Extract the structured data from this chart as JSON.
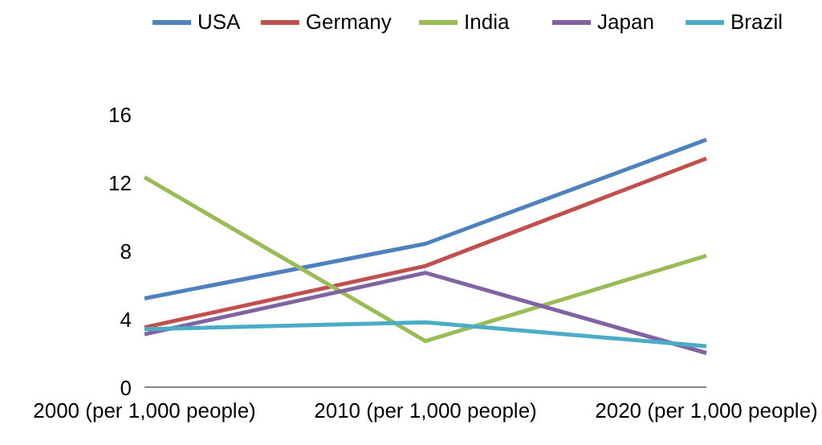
{
  "chart_data": {
    "type": "line",
    "categories": [
      "2000 (per 1,000 people)",
      "2010 (per 1,000 people)",
      "2020 (per 1,000 people)"
    ],
    "series": [
      {
        "name": "USA",
        "color": "#4f81bd",
        "values": [
          5.2,
          8.4,
          14.5
        ]
      },
      {
        "name": "Germany",
        "color": "#c0504d",
        "values": [
          3.5,
          7.1,
          13.4
        ]
      },
      {
        "name": "India",
        "color": "#9bbb59",
        "values": [
          12.3,
          2.7,
          7.7
        ]
      },
      {
        "name": "Japan",
        "color": "#8064a2",
        "values": [
          3.1,
          6.7,
          2.0
        ]
      },
      {
        "name": "Brazil",
        "color": "#4bacc6",
        "values": [
          3.4,
          3.8,
          2.4
        ]
      }
    ],
    "ylim": [
      0,
      16
    ],
    "yticks": [
      0,
      4,
      8,
      12,
      16
    ],
    "grid": false,
    "legend": "top",
    "marker": "none",
    "line_style": "solid"
  }
}
